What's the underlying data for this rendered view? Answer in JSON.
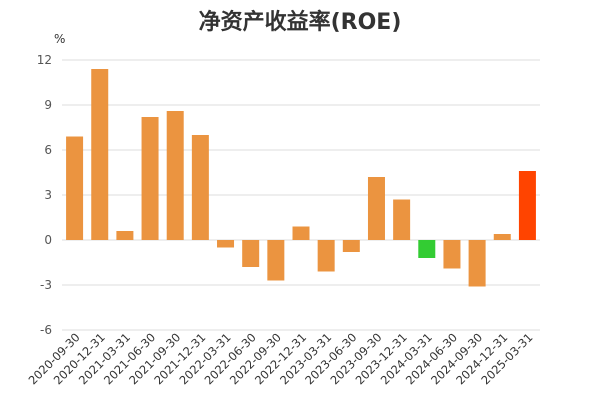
{
  "chart_data": {
    "type": "bar",
    "title": "净资产收益率(ROE)",
    "unit": "%",
    "xlabel": "",
    "ylabel": "",
    "ylim": [
      -6,
      12
    ],
    "yticks": [
      -6,
      -3,
      0,
      3,
      6,
      9,
      12
    ],
    "grid": true,
    "categories": [
      "2020-09-30",
      "2020-12-31",
      "2021-03-31",
      "2021-06-30",
      "2021-09-30",
      "2021-12-31",
      "2022-03-31",
      "2022-06-30",
      "2022-09-30",
      "2022-12-31",
      "2023-03-31",
      "2023-06-30",
      "2023-09-30",
      "2023-12-31",
      "2024-03-31",
      "2024-06-30",
      "2024-09-30",
      "2024-12-31",
      "2025-03-31"
    ],
    "values": [
      6.9,
      11.4,
      0.6,
      8.2,
      8.6,
      7.0,
      -0.5,
      -1.8,
      -2.7,
      0.9,
      -2.1,
      -0.8,
      4.2,
      2.7,
      -1.2,
      -1.9,
      -3.1,
      0.4,
      4.6
    ],
    "bar_colors": [
      "#EB9440",
      "#EB9440",
      "#EB9440",
      "#EB9440",
      "#EB9440",
      "#EB9440",
      "#EB9440",
      "#EB9440",
      "#EB9440",
      "#EB9440",
      "#EB9440",
      "#EB9440",
      "#EB9440",
      "#EB9440",
      "#33CC33",
      "#EB9440",
      "#EB9440",
      "#EB9440",
      "#FF4400"
    ]
  }
}
